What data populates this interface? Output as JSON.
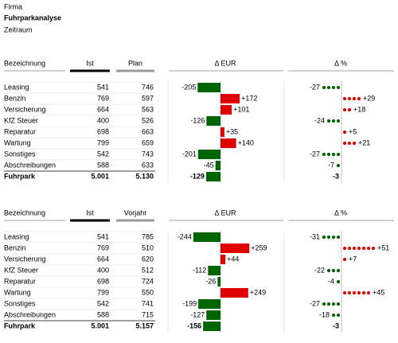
{
  "header": {
    "company": "Firma",
    "title": "Fuhrparkanalyse",
    "period": "Zeitraum"
  },
  "tables": [
    {
      "col_label": "Bezeichnung",
      "col_actual": "Ist",
      "col_compare": "Plan",
      "col_delta_abs": "Δ EUR",
      "col_delta_pct": "Δ %",
      "rows": [
        {
          "label": "Leasing",
          "actual": 541,
          "compare": 746,
          "delta_abs": -205,
          "delta_pct": -27
        },
        {
          "label": "Benzin",
          "actual": 769,
          "compare": 597,
          "delta_abs": 172,
          "delta_abs_label": "+172",
          "delta_pct": 29,
          "delta_pct_label": "+29"
        },
        {
          "label": "Versicherung",
          "actual": 664,
          "compare": 563,
          "delta_abs": 101,
          "delta_abs_label": "+101",
          "delta_pct": 18,
          "delta_pct_label": "+18"
        },
        {
          "label": "KfZ Steuer",
          "actual": 400,
          "compare": 526,
          "delta_abs": -126,
          "delta_pct": -24
        },
        {
          "label": "Reparatur",
          "actual": 698,
          "compare": 663,
          "delta_abs": 35,
          "delta_abs_label": "+35",
          "delta_pct": 5,
          "delta_pct_label": "+5"
        },
        {
          "label": "Wartung",
          "actual": 799,
          "compare": 659,
          "delta_abs": 140,
          "delta_abs_label": "+140",
          "delta_pct": 21,
          "delta_pct_label": "+21"
        },
        {
          "label": "Sonstiges",
          "actual": 542,
          "compare": 743,
          "delta_abs": -201,
          "delta_pct": -27
        },
        {
          "label": "Abschreibungen",
          "actual": 588,
          "compare": 633,
          "delta_abs": -45,
          "delta_pct": -7
        }
      ],
      "total": {
        "label": "Fuhrpark",
        "actual": "5.001",
        "compare": "5.130",
        "delta_abs": -129,
        "delta_pct": -3
      }
    },
    {
      "col_label": "Bezeichnung",
      "col_actual": "Ist",
      "col_compare": "Vorjahr",
      "col_delta_abs": "Δ EUR",
      "col_delta_pct": "Δ %",
      "rows": [
        {
          "label": "Leasing",
          "actual": 541,
          "compare": 785,
          "delta_abs": -244,
          "delta_pct": -31
        },
        {
          "label": "Benzin",
          "actual": 769,
          "compare": 510,
          "delta_abs": 259,
          "delta_abs_label": "+259",
          "delta_pct": 51,
          "delta_pct_label": "+51"
        },
        {
          "label": "Versicherung",
          "actual": 664,
          "compare": 620,
          "delta_abs": 44,
          "delta_abs_label": "+44",
          "delta_pct": 7,
          "delta_pct_label": "+7"
        },
        {
          "label": "KfZ Steuer",
          "actual": 400,
          "compare": 512,
          "delta_abs": -112,
          "delta_pct": -22
        },
        {
          "label": "Reparatur",
          "actual": 698,
          "compare": 724,
          "delta_abs": -26,
          "delta_pct": -4
        },
        {
          "label": "Wartung",
          "actual": 799,
          "compare": 550,
          "delta_abs": 249,
          "delta_abs_label": "+249",
          "delta_pct": 45,
          "delta_pct_label": "+45"
        },
        {
          "label": "Sonstiges",
          "actual": 542,
          "compare": 741,
          "delta_abs": -199,
          "delta_pct": -27
        },
        {
          "label": "Abschreibungen",
          "actual": 588,
          "compare": 715,
          "delta_abs": -127,
          "delta_pct": -18
        }
      ],
      "total": {
        "label": "Fuhrpark",
        "actual": "5.001",
        "compare": "5.157",
        "delta_abs": -156,
        "delta_pct": -3
      }
    }
  ]
}
